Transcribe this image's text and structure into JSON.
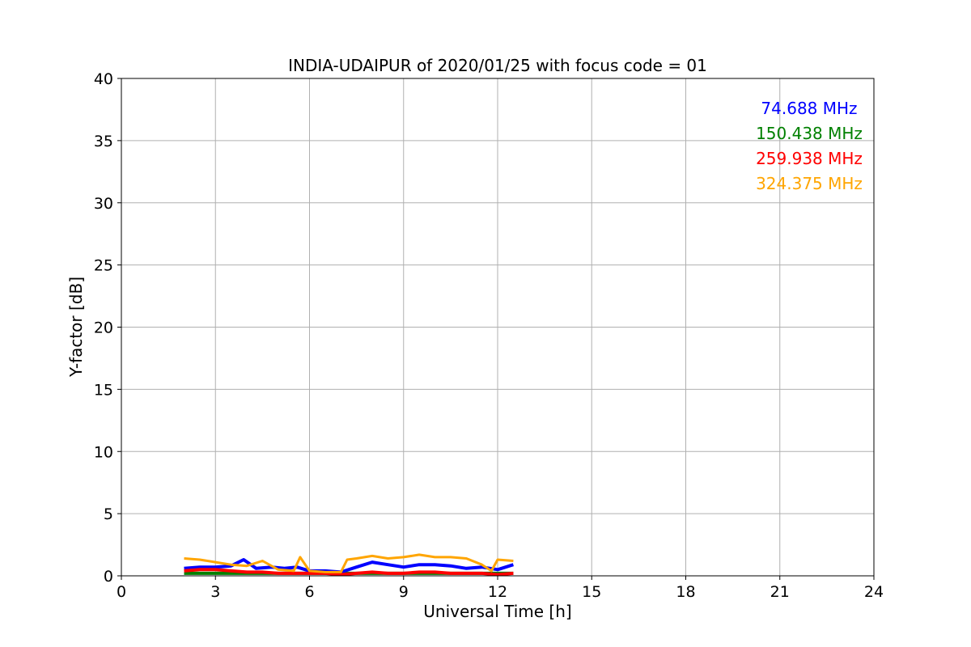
{
  "chart_data": {
    "type": "line",
    "title": "INDIA-UDAIPUR of 2020/01/25 with focus code = 01",
    "xlabel": "Universal Time [h]",
    "ylabel": "Y-factor [dB]",
    "xlim": [
      0,
      24
    ],
    "ylim": [
      0,
      40
    ],
    "xticks": [
      "0",
      "3",
      "6",
      "9",
      "12",
      "15",
      "18",
      "21",
      "24"
    ],
    "yticks": [
      "0",
      "5",
      "10",
      "15",
      "20",
      "25",
      "30",
      "35",
      "40"
    ],
    "grid": true,
    "legend_position": "top-right",
    "series": [
      {
        "name": "74.688 MHz",
        "color": "#0000ff",
        "x": [
          2.0,
          2.5,
          3.0,
          3.5,
          3.9,
          4.3,
          4.8,
          5.2,
          5.6,
          6.0,
          6.5,
          7.0,
          7.5,
          8.0,
          8.5,
          9.0,
          9.5,
          10.0,
          10.5,
          11.0,
          11.5,
          12.0,
          12.5
        ],
        "values": [
          0.6,
          0.7,
          0.7,
          0.8,
          1.3,
          0.6,
          0.7,
          0.6,
          0.7,
          0.4,
          0.4,
          0.3,
          0.7,
          1.1,
          0.9,
          0.7,
          0.9,
          0.9,
          0.8,
          0.6,
          0.7,
          0.5,
          0.9
        ]
      },
      {
        "name": "150.438 MHz",
        "color": "#008000",
        "x": [
          2.0,
          12.5
        ],
        "values": [
          0.2,
          0.2
        ]
      },
      {
        "name": "259.938 MHz",
        "color": "#ff0000",
        "x": [
          2.0,
          2.5,
          3.0,
          3.5,
          4.0,
          4.5,
          5.0,
          5.5,
          6.0,
          6.5,
          7.0,
          7.5,
          8.0,
          8.5,
          9.0,
          9.5,
          10.0,
          10.5,
          11.0,
          11.5,
          12.0,
          12.5
        ],
        "values": [
          0.4,
          0.5,
          0.5,
          0.4,
          0.3,
          0.3,
          0.2,
          0.2,
          0.2,
          0.2,
          0.1,
          0.2,
          0.3,
          0.2,
          0.2,
          0.3,
          0.3,
          0.2,
          0.2,
          0.2,
          0.1,
          0.2
        ]
      },
      {
        "name": "324.375 MHz",
        "color": "#ffa500",
        "x": [
          2.0,
          2.5,
          3.0,
          3.5,
          4.0,
          4.5,
          5.0,
          5.5,
          5.7,
          6.0,
          6.5,
          7.0,
          7.2,
          7.5,
          8.0,
          8.5,
          9.0,
          9.5,
          10.0,
          10.5,
          11.0,
          11.5,
          11.8,
          12.0,
          12.5
        ],
        "values": [
          1.4,
          1.3,
          1.1,
          0.9,
          0.8,
          1.2,
          0.5,
          0.4,
          1.5,
          0.4,
          0.3,
          0.3,
          1.3,
          1.4,
          1.6,
          1.4,
          1.5,
          1.7,
          1.5,
          1.5,
          1.4,
          0.9,
          0.4,
          1.3,
          1.2
        ]
      }
    ]
  }
}
